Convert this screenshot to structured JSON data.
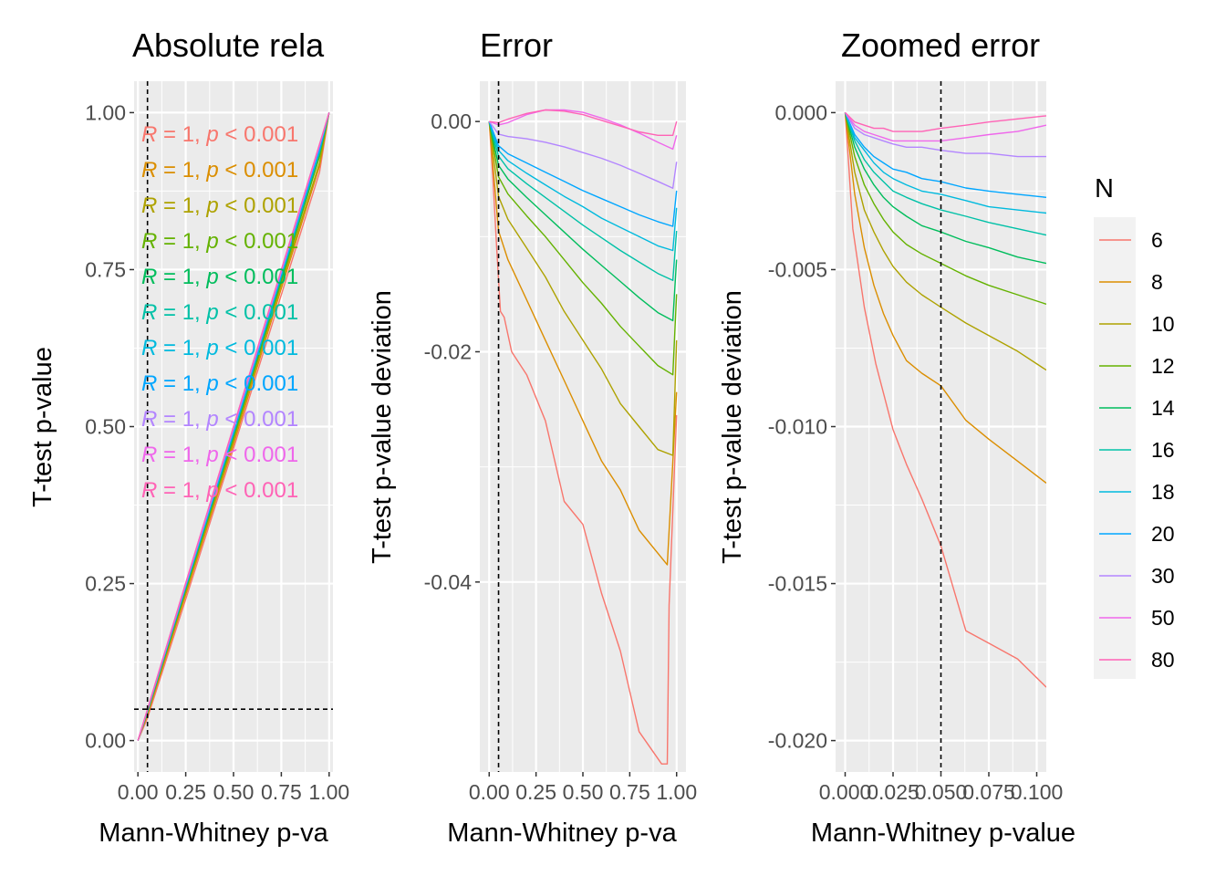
{
  "legend": {
    "title": "N",
    "labels": [
      "6",
      "8",
      "10",
      "12",
      "14",
      "16",
      "18",
      "20",
      "30",
      "50",
      "80"
    ],
    "colors": [
      "#F8766D",
      "#DB8E00",
      "#AEA200",
      "#64B200",
      "#00BD5C",
      "#00C1A7",
      "#00BADE",
      "#00A6FF",
      "#B385FF",
      "#EF67EB",
      "#FF63B6"
    ]
  },
  "annotation_text": {
    "r_symbol": "R",
    "r_eq": " = 1, ",
    "p_symbol": "p",
    "p_rest": " < 0.001"
  },
  "chart_data": [
    {
      "type": "line",
      "title": "Absolute rela",
      "xlabel": "Mann-Whitney p-va",
      "ylabel": "T-test p-value",
      "xlim": [
        -0.02,
        1.02
      ],
      "ylim": [
        -0.05,
        1.05
      ],
      "xticks": [
        "0.00",
        "0.25",
        "0.50",
        "0.75",
        "1.00"
      ],
      "xtick_values": [
        0,
        0.25,
        0.5,
        0.75,
        1
      ],
      "yticks": [
        "0.00",
        "0.25",
        "0.50",
        "0.75",
        "1.00"
      ],
      "ytick_values": [
        0,
        0.25,
        0.5,
        0.75,
        1
      ],
      "grid": true,
      "reference_lines": {
        "vline": 0.05,
        "hline": 0.05
      },
      "series": [
        {
          "name": "6",
          "x": [
            0,
            0.05,
            0.25,
            0.5,
            0.75,
            0.95,
            1.0
          ],
          "y": [
            0,
            0.036,
            0.225,
            0.465,
            0.71,
            0.905,
            1.0
          ]
        },
        {
          "name": "8",
          "x": [
            0,
            0.05,
            0.25,
            0.5,
            0.75,
            0.95,
            1.0
          ],
          "y": [
            0,
            0.041,
            0.232,
            0.472,
            0.72,
            0.915,
            1.0
          ]
        },
        {
          "name": "10",
          "x": [
            0,
            0.05,
            0.25,
            0.5,
            0.75,
            0.95,
            1.0
          ],
          "y": [
            0,
            0.044,
            0.237,
            0.478,
            0.727,
            0.92,
            1.0
          ]
        },
        {
          "name": "12",
          "x": [
            0,
            0.05,
            0.25,
            0.5,
            0.75,
            0.95,
            1.0
          ],
          "y": [
            0,
            0.045,
            0.24,
            0.482,
            0.732,
            0.93,
            1.0
          ]
        },
        {
          "name": "14",
          "x": [
            0,
            0.05,
            0.25,
            0.5,
            0.75,
            0.95,
            1.0
          ],
          "y": [
            0,
            0.046,
            0.242,
            0.486,
            0.736,
            0.935,
            1.0
          ]
        },
        {
          "name": "16",
          "x": [
            0,
            0.05,
            0.25,
            0.5,
            0.75,
            0.95,
            1.0
          ],
          "y": [
            0,
            0.047,
            0.244,
            0.488,
            0.739,
            0.937,
            1.0
          ]
        },
        {
          "name": "18",
          "x": [
            0,
            0.05,
            0.25,
            0.5,
            0.75,
            0.95,
            1.0
          ],
          "y": [
            0,
            0.0475,
            0.245,
            0.49,
            0.741,
            0.94,
            1.0
          ]
        },
        {
          "name": "20",
          "x": [
            0,
            0.05,
            0.25,
            0.5,
            0.75,
            0.95,
            1.0
          ],
          "y": [
            0,
            0.048,
            0.246,
            0.492,
            0.743,
            0.942,
            1.0
          ]
        },
        {
          "name": "30",
          "x": [
            0,
            0.05,
            0.25,
            0.5,
            0.75,
            0.95,
            1.0
          ],
          "y": [
            0,
            0.049,
            0.248,
            0.496,
            0.746,
            0.947,
            1.0
          ]
        },
        {
          "name": "50",
          "x": [
            0,
            0.05,
            0.25,
            0.5,
            0.75,
            0.95,
            1.0
          ],
          "y": [
            0,
            0.05,
            0.251,
            0.5,
            0.749,
            0.949,
            1.0
          ]
        },
        {
          "name": "80",
          "x": [
            0,
            0.05,
            0.25,
            0.5,
            0.75,
            0.95,
            1.0
          ],
          "y": [
            0,
            0.05,
            0.251,
            0.5,
            0.75,
            0.95,
            1.0
          ]
        }
      ]
    },
    {
      "type": "line",
      "title": "Error",
      "xlabel": "Mann-Whitney p-va",
      "ylabel": "T-test p-value deviation",
      "xlim": [
        -0.05,
        1.05
      ],
      "ylim": [
        -0.0565,
        0.0035
      ],
      "xticks": [
        "0.00",
        "0.25",
        "0.50",
        "0.75",
        "1.00"
      ],
      "xtick_values": [
        0,
        0.25,
        0.5,
        0.75,
        1
      ],
      "yticks": [
        "0.00",
        "-0.02",
        "-0.04"
      ],
      "ytick_values": [
        0,
        -0.02,
        -0.04
      ],
      "grid": true,
      "reference_lines": {
        "vline": 0.05
      },
      "series": [
        {
          "name": "6",
          "x": [
            0,
            0.02,
            0.04,
            0.06,
            0.08,
            0.12,
            0.2,
            0.3,
            0.4,
            0.5,
            0.6,
            0.7,
            0.8,
            0.92,
            0.95,
            0.96,
            1.0
          ],
          "y": [
            0,
            -0.005,
            -0.011,
            -0.0165,
            -0.017,
            -0.02,
            -0.022,
            -0.026,
            -0.033,
            -0.035,
            -0.041,
            -0.046,
            -0.053,
            -0.0558,
            -0.0558,
            -0.042,
            -0.0255
          ]
        },
        {
          "name": "8",
          "x": [
            0,
            0.05,
            0.1,
            0.2,
            0.3,
            0.4,
            0.5,
            0.6,
            0.7,
            0.8,
            0.9,
            0.95,
            1.0
          ],
          "y": [
            0,
            -0.0095,
            -0.012,
            -0.0155,
            -0.019,
            -0.0225,
            -0.026,
            -0.0295,
            -0.032,
            -0.0355,
            -0.0375,
            -0.0385,
            -0.0235
          ]
        },
        {
          "name": "10",
          "x": [
            0,
            0.05,
            0.1,
            0.2,
            0.3,
            0.4,
            0.5,
            0.6,
            0.7,
            0.8,
            0.9,
            0.98,
            1.0
          ],
          "y": [
            0,
            -0.0065,
            -0.0085,
            -0.011,
            -0.0135,
            -0.0165,
            -0.019,
            -0.0215,
            -0.0245,
            -0.0265,
            -0.0285,
            -0.029,
            -0.019
          ]
        },
        {
          "name": "12",
          "x": [
            0,
            0.05,
            0.1,
            0.2,
            0.3,
            0.4,
            0.5,
            0.6,
            0.7,
            0.8,
            0.9,
            0.98,
            1.0
          ],
          "y": [
            0,
            -0.0048,
            -0.0063,
            -0.0082,
            -0.01,
            -0.012,
            -0.014,
            -0.0158,
            -0.0178,
            -0.0195,
            -0.0212,
            -0.022,
            -0.015
          ]
        },
        {
          "name": "14",
          "x": [
            0,
            0.05,
            0.1,
            0.2,
            0.3,
            0.4,
            0.5,
            0.6,
            0.7,
            0.8,
            0.9,
            0.98,
            1.0
          ],
          "y": [
            0,
            -0.0038,
            -0.005,
            -0.0066,
            -0.0081,
            -0.0096,
            -0.0111,
            -0.0125,
            -0.0139,
            -0.0153,
            -0.0166,
            -0.0173,
            -0.012
          ]
        },
        {
          "name": "16",
          "x": [
            0,
            0.05,
            0.1,
            0.2,
            0.3,
            0.4,
            0.5,
            0.6,
            0.7,
            0.8,
            0.9,
            0.98,
            1.0
          ],
          "y": [
            0,
            -0.003,
            -0.0041,
            -0.0054,
            -0.0066,
            -0.0078,
            -0.009,
            -0.0101,
            -0.0112,
            -0.0122,
            -0.0132,
            -0.0138,
            -0.0095
          ]
        },
        {
          "name": "18",
          "x": [
            0,
            0.05,
            0.1,
            0.2,
            0.3,
            0.4,
            0.5,
            0.6,
            0.7,
            0.8,
            0.9,
            0.98,
            1.0
          ],
          "y": [
            0,
            -0.0025,
            -0.0034,
            -0.0045,
            -0.0055,
            -0.0065,
            -0.0074,
            -0.0084,
            -0.0092,
            -0.01,
            -0.0108,
            -0.0112,
            -0.0075
          ]
        },
        {
          "name": "20",
          "x": [
            0,
            0.05,
            0.1,
            0.2,
            0.3,
            0.4,
            0.5,
            0.6,
            0.7,
            0.8,
            0.9,
            0.98,
            1.0
          ],
          "y": [
            0,
            -0.0021,
            -0.0028,
            -0.0036,
            -0.0044,
            -0.0052,
            -0.006,
            -0.0067,
            -0.0074,
            -0.0081,
            -0.0087,
            -0.0091,
            -0.006
          ]
        },
        {
          "name": "30",
          "x": [
            0,
            0.05,
            0.1,
            0.2,
            0.3,
            0.4,
            0.5,
            0.6,
            0.7,
            0.8,
            0.9,
            0.98,
            1.0
          ],
          "y": [
            0,
            -0.0011,
            -0.0013,
            -0.0015,
            -0.0018,
            -0.0022,
            -0.0027,
            -0.0032,
            -0.0038,
            -0.0045,
            -0.0052,
            -0.0058,
            -0.0035
          ]
        },
        {
          "name": "50",
          "x": [
            0,
            0.05,
            0.1,
            0.2,
            0.3,
            0.4,
            0.5,
            0.6,
            0.7,
            0.8,
            0.9,
            0.98,
            1.0
          ],
          "y": [
            0,
            -0.0003,
            -0.0001,
            0.0006,
            0.001,
            0.001,
            0.0008,
            0.0003,
            -0.0003,
            -0.001,
            -0.0018,
            -0.0024,
            -0.0012
          ]
        },
        {
          "name": "80",
          "x": [
            0,
            0.05,
            0.1,
            0.2,
            0.3,
            0.4,
            0.5,
            0.6,
            0.7,
            0.8,
            0.9,
            0.98,
            1.0
          ],
          "y": [
            0,
            -0.0001,
            0.0002,
            0.0007,
            0.001,
            0.0009,
            0.0006,
            0.0001,
            -0.0004,
            -0.0009,
            -0.0012,
            -0.0012,
            0
          ]
        }
      ]
    },
    {
      "type": "line",
      "title": "Zoomed error",
      "xlabel": "Mann-Whitney p-value",
      "ylabel": "T-test p-value deviation",
      "xlim": [
        -0.005,
        0.105
      ],
      "ylim": [
        -0.021,
        0.001
      ],
      "xticks": [
        "0.000",
        "0.025",
        "0.050",
        "0.075",
        "0.100"
      ],
      "xtick_values": [
        0,
        0.025,
        0.05,
        0.075,
        0.1
      ],
      "yticks": [
        "0.000",
        "-0.005",
        "-0.010",
        "-0.015",
        "-0.020"
      ],
      "ytick_values": [
        0,
        -0.005,
        -0.01,
        -0.015,
        -0.02
      ],
      "grid": true,
      "reference_lines": {
        "vline": 0.05
      },
      "series": [
        {
          "name": "6",
          "x": [
            0,
            0.002,
            0.004,
            0.01,
            0.016,
            0.025,
            0.032,
            0.04,
            0.05,
            0.063,
            0.075,
            0.09,
            0.105
          ],
          "y": [
            0,
            -0.0018,
            -0.0037,
            -0.0062,
            -0.008,
            -0.0101,
            -0.0112,
            -0.0123,
            -0.0138,
            -0.0165,
            -0.0169,
            -0.0174,
            -0.0183
          ]
        },
        {
          "name": "8",
          "x": [
            0,
            0.005,
            0.01,
            0.015,
            0.02,
            0.025,
            0.032,
            0.04,
            0.05,
            0.063,
            0.075,
            0.09,
            0.105
          ],
          "y": [
            0,
            -0.0026,
            -0.0043,
            -0.0055,
            -0.0064,
            -0.0071,
            -0.0079,
            -0.0083,
            -0.0087,
            -0.0098,
            -0.0104,
            -0.0111,
            -0.0118
          ]
        },
        {
          "name": "10",
          "x": [
            0,
            0.005,
            0.01,
            0.015,
            0.02,
            0.025,
            0.032,
            0.04,
            0.05,
            0.063,
            0.075,
            0.09,
            0.105
          ],
          "y": [
            0,
            -0.0019,
            -0.0031,
            -0.0038,
            -0.0044,
            -0.0049,
            -0.0054,
            -0.0058,
            -0.0062,
            -0.0067,
            -0.0071,
            -0.0076,
            -0.0082
          ]
        },
        {
          "name": "12",
          "x": [
            0,
            0.005,
            0.01,
            0.015,
            0.02,
            0.025,
            0.032,
            0.04,
            0.05,
            0.063,
            0.075,
            0.09,
            0.105
          ],
          "y": [
            0,
            -0.0014,
            -0.0023,
            -0.0029,
            -0.0034,
            -0.0038,
            -0.0042,
            -0.0045,
            -0.0048,
            -0.0052,
            -0.0055,
            -0.0058,
            -0.0061
          ]
        },
        {
          "name": "14",
          "x": [
            0,
            0.005,
            0.01,
            0.015,
            0.02,
            0.025,
            0.032,
            0.04,
            0.05,
            0.063,
            0.075,
            0.09,
            0.105
          ],
          "y": [
            0,
            -0.0011,
            -0.0018,
            -0.0023,
            -0.0027,
            -0.003,
            -0.0033,
            -0.0036,
            -0.0038,
            -0.0041,
            -0.0043,
            -0.0046,
            -0.0048
          ]
        },
        {
          "name": "16",
          "x": [
            0,
            0.005,
            0.01,
            0.015,
            0.02,
            0.025,
            0.032,
            0.04,
            0.05,
            0.063,
            0.075,
            0.09,
            0.105
          ],
          "y": [
            0,
            -0.0009,
            -0.0015,
            -0.0019,
            -0.0022,
            -0.0025,
            -0.0027,
            -0.0029,
            -0.0031,
            -0.0033,
            -0.0035,
            -0.0037,
            -0.0039
          ]
        },
        {
          "name": "18",
          "x": [
            0,
            0.005,
            0.01,
            0.015,
            0.02,
            0.025,
            0.032,
            0.04,
            0.05,
            0.063,
            0.075,
            0.09,
            0.105
          ],
          "y": [
            0,
            -0.0008,
            -0.0012,
            -0.0016,
            -0.0019,
            -0.0021,
            -0.0023,
            -0.0025,
            -0.0026,
            -0.0028,
            -0.003,
            -0.0031,
            -0.0032
          ]
        },
        {
          "name": "20",
          "x": [
            0,
            0.005,
            0.01,
            0.015,
            0.02,
            0.025,
            0.032,
            0.04,
            0.05,
            0.063,
            0.075,
            0.09,
            0.105
          ],
          "y": [
            0,
            -0.0007,
            -0.0011,
            -0.0014,
            -0.0016,
            -0.0018,
            -0.0019,
            -0.0021,
            -0.0022,
            -0.0024,
            -0.0025,
            -0.0026,
            -0.0027
          ]
        },
        {
          "name": "30",
          "x": [
            0,
            0.005,
            0.01,
            0.015,
            0.02,
            0.025,
            0.032,
            0.04,
            0.05,
            0.063,
            0.075,
            0.09,
            0.105
          ],
          "y": [
            0,
            -0.0005,
            -0.0007,
            -0.0008,
            -0.0009,
            -0.001,
            -0.0011,
            -0.0011,
            -0.0012,
            -0.0013,
            -0.0013,
            -0.0014,
            -0.0014
          ]
        },
        {
          "name": "50",
          "x": [
            0,
            0.005,
            0.01,
            0.015,
            0.02,
            0.025,
            0.032,
            0.04,
            0.05,
            0.063,
            0.075,
            0.09,
            0.105
          ],
          "y": [
            0,
            -0.0004,
            -0.0006,
            -0.0007,
            -0.0008,
            -0.0009,
            -0.0009,
            -0.0009,
            -0.0009,
            -0.0008,
            -0.0007,
            -0.0006,
            -0.0004
          ]
        },
        {
          "name": "80",
          "x": [
            0,
            0.005,
            0.01,
            0.015,
            0.02,
            0.025,
            0.032,
            0.04,
            0.05,
            0.063,
            0.075,
            0.09,
            0.105
          ],
          "y": [
            0,
            -0.0003,
            -0.0004,
            -0.0005,
            -0.0005,
            -0.0006,
            -0.0006,
            -0.0006,
            -0.0005,
            -0.0004,
            -0.0003,
            -0.0002,
            -0.0001
          ]
        }
      ]
    }
  ]
}
